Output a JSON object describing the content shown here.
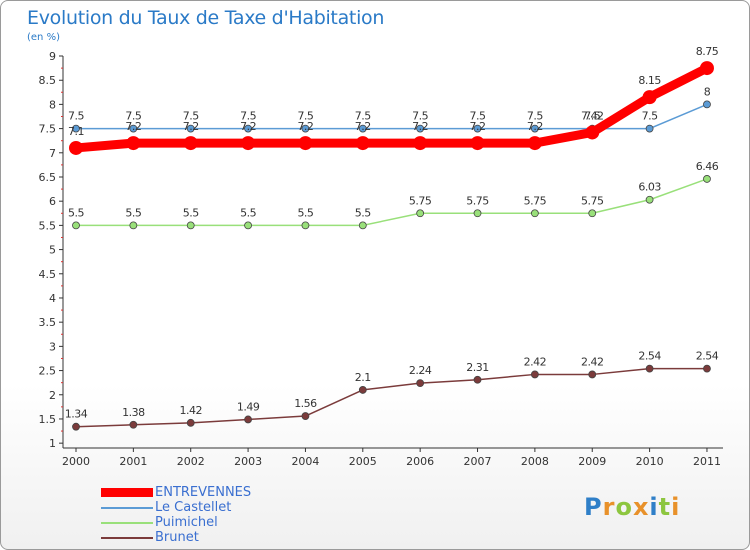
{
  "header": {
    "title": "Evolution du Taux de Taxe d'Habitation",
    "subtitle": "(en %)"
  },
  "brand": {
    "text": "Proxiti",
    "letters": [
      "P",
      "r",
      "o",
      "x",
      "i",
      "t",
      "i"
    ],
    "letter_colors": [
      "#2f7fc8",
      "#e8912a",
      "#8dc63f",
      "#e8912a",
      "#2f7fc8",
      "#8dc63f",
      "#e8912a"
    ]
  },
  "chart_data": {
    "type": "line",
    "title": "Evolution du Taux de Taxe d'Habitation",
    "ylabel": "(en %)",
    "xlabel": "",
    "categories": [
      "2000",
      "2001",
      "2002",
      "2003",
      "2004",
      "2005",
      "2006",
      "2007",
      "2008",
      "2009",
      "2010",
      "2011"
    ],
    "ylim": [
      0.9,
      9
    ],
    "yticks": [
      1,
      1.5,
      2,
      2.5,
      3,
      3.5,
      4,
      4.5,
      5,
      5.5,
      6,
      6.5,
      7,
      7.5,
      8,
      8.5,
      9
    ],
    "ytick_labels": [
      "1",
      "1.5",
      "2",
      "2.5",
      "3",
      "3.5",
      "4",
      "4.5",
      "5",
      "5.5",
      "6",
      "6.5",
      "7",
      "7.5",
      "8",
      "8.5",
      "9"
    ],
    "grid": false,
    "legend_position": "bottom-left",
    "series": [
      {
        "name": "ENTREVENNES",
        "color": "#ff0000",
        "emphasis": true,
        "values": [
          7.1,
          7.2,
          7.2,
          7.2,
          7.2,
          7.2,
          7.2,
          7.2,
          7.2,
          7.42,
          8.15,
          8.75
        ],
        "labels": [
          "7.1",
          "7.2",
          "7.2",
          "7.2",
          "7.2",
          "7.2",
          "7.2",
          "7.2",
          "7.2",
          "7.42",
          "8.15",
          "8.75"
        ]
      },
      {
        "name": "Le Castellet",
        "color": "#5b9bd5",
        "emphasis": false,
        "values": [
          7.5,
          7.5,
          7.5,
          7.5,
          7.5,
          7.5,
          7.5,
          7.5,
          7.5,
          7.5,
          7.5,
          8
        ],
        "labels": [
          "7.5",
          "7.5",
          "7.5",
          "7.5",
          "7.5",
          "7.5",
          "7.5",
          "7.5",
          "7.5",
          "7.5",
          "7.5",
          "8"
        ]
      },
      {
        "name": "Puimichel",
        "color": "#99e07a",
        "emphasis": false,
        "values": [
          5.5,
          5.5,
          5.5,
          5.5,
          5.5,
          5.5,
          5.75,
          5.75,
          5.75,
          5.75,
          6.03,
          6.46
        ],
        "labels": [
          "5.5",
          "5.5",
          "5.5",
          "5.5",
          "5.5",
          "5.5",
          "5.75",
          "5.75",
          "5.75",
          "5.75",
          "6.03",
          "6.46"
        ]
      },
      {
        "name": "Brunet",
        "color": "#7b3b3b",
        "emphasis": false,
        "values": [
          1.34,
          1.38,
          1.42,
          1.49,
          1.56,
          2.1,
          2.24,
          2.31,
          2.42,
          2.42,
          2.54,
          2.54
        ],
        "labels": [
          "1.34",
          "1.38",
          "1.42",
          "1.49",
          "1.56",
          "2.1",
          "2.24",
          "2.31",
          "2.42",
          "2.42",
          "2.54",
          "2.54"
        ]
      }
    ]
  }
}
